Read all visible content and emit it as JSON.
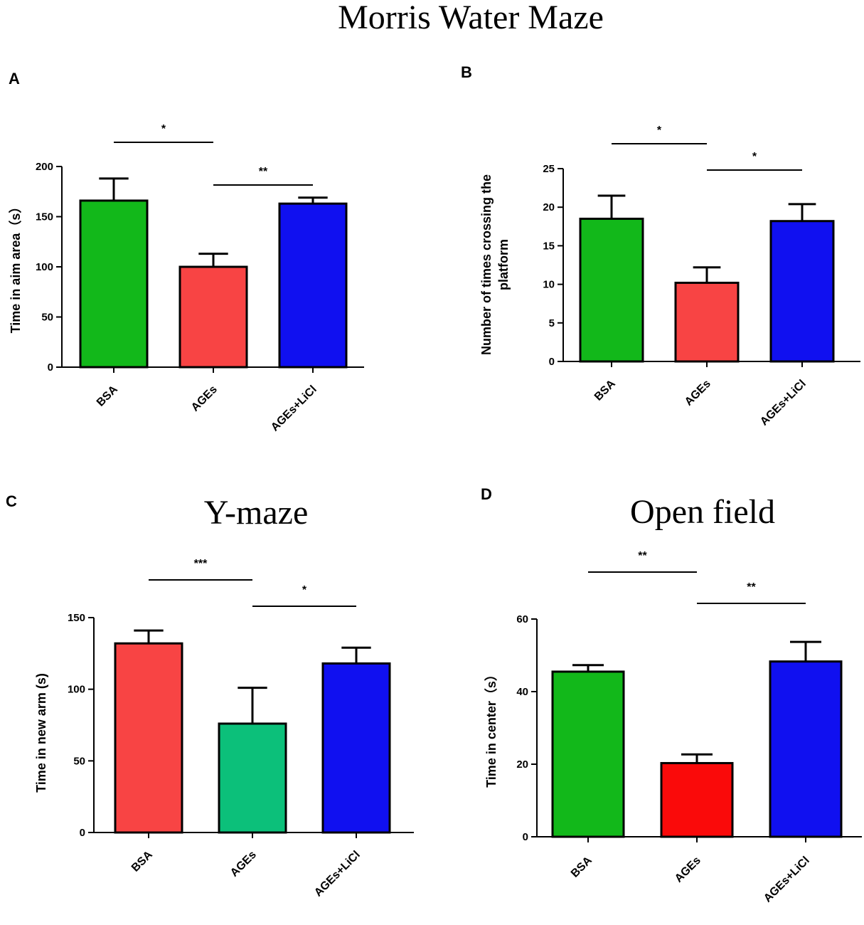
{
  "figure_title": "Morris Water Maze",
  "chart_data": [
    {
      "type": "bar",
      "panel": "A",
      "title": "",
      "xlabel": "",
      "ylabel": "Time in aim area（s）",
      "ylim": [
        0,
        200
      ],
      "yticks": [
        0,
        50,
        100,
        150,
        200
      ],
      "categories": [
        "BSA",
        "AGEs",
        "AGEs+LiCl"
      ],
      "values": [
        166,
        100,
        163
      ],
      "errors": [
        22,
        13,
        6
      ],
      "colors": [
        "#12b81a",
        "#f84444",
        "#1010f0"
      ],
      "significance": [
        {
          "from": 0,
          "to": 1,
          "label": "*",
          "level": 1
        },
        {
          "from": 1,
          "to": 2,
          "label": "**",
          "level": 0
        }
      ]
    },
    {
      "type": "bar",
      "panel": "B",
      "title": "",
      "xlabel": "",
      "ylabel": "Number of times crossing the platform",
      "ylabel_lines": [
        "Number of times crossing the",
        "platform"
      ],
      "ylim": [
        0,
        25
      ],
      "yticks": [
        0,
        5,
        10,
        15,
        20,
        25
      ],
      "categories": [
        "BSA",
        "AGEs",
        "AGEs+LiCl"
      ],
      "values": [
        18.5,
        10.2,
        18.2
      ],
      "errors": [
        3.0,
        2.0,
        2.2
      ],
      "colors": [
        "#12b81a",
        "#f84444",
        "#1010f0"
      ],
      "significance": [
        {
          "from": 0,
          "to": 1,
          "label": "*",
          "level": 1
        },
        {
          "from": 1,
          "to": 2,
          "label": "*",
          "level": 0
        }
      ]
    },
    {
      "type": "bar",
      "panel": "C",
      "title": "Y-maze",
      "xlabel": "",
      "ylabel": "Time in new arm (s)",
      "ylim": [
        0,
        150
      ],
      "yticks": [
        0,
        50,
        100,
        150
      ],
      "categories": [
        "BSA",
        "AGEs",
        "AGEs+LiCl"
      ],
      "values": [
        132,
        76,
        118
      ],
      "errors": [
        9,
        25,
        11
      ],
      "colors": [
        "#f84444",
        "#0cc07a",
        "#1010f0"
      ],
      "significance": [
        {
          "from": 0,
          "to": 1,
          "label": "***",
          "level": 1
        },
        {
          "from": 1,
          "to": 2,
          "label": "*",
          "level": 0
        }
      ]
    },
    {
      "type": "bar",
      "panel": "D",
      "title": "Open field",
      "xlabel": "",
      "ylabel": "Time in center（s）",
      "ylim": [
        0,
        60
      ],
      "yticks": [
        0,
        20,
        40,
        60
      ],
      "categories": [
        "BSA",
        "AGEs",
        "AGEs+LiCl"
      ],
      "values": [
        45.5,
        20.3,
        48.3
      ],
      "errors": [
        1.8,
        2.4,
        5.4
      ],
      "colors": [
        "#12b81a",
        "#fa0a0a",
        "#1010f0"
      ],
      "significance": [
        {
          "from": 0,
          "to": 1,
          "label": "**",
          "level": 1
        },
        {
          "from": 1,
          "to": 2,
          "label": "**",
          "level": 0
        }
      ]
    }
  ]
}
